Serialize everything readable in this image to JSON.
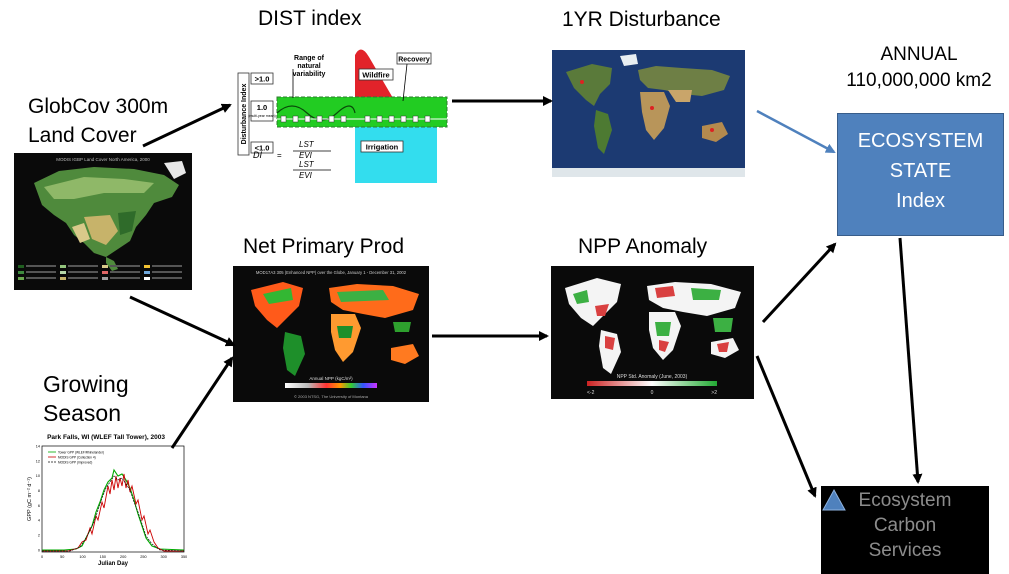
{
  "labels": {
    "globcov_l1": "GlobCov 300m",
    "globcov_l2": "Land Cover",
    "dist_index": "DIST index",
    "yr_disturbance": "1YR Disturbance",
    "annual_l1": "ANNUAL",
    "annual_l2": "110,000,000 km2",
    "net_primary": "Net Primary Prod",
    "npp_anomaly": "NPP Anomaly",
    "growing_l1": "Growing",
    "growing_l2": "Season"
  },
  "ecosystem_state": {
    "l1": "ECOSYSTEM",
    "l2": "STATE",
    "l3": "Index"
  },
  "carbon_services": {
    "l1": "Ecosystem",
    "l2": "Carbon",
    "l3": "Services"
  },
  "landcover_map": {
    "title": "MODIS IGBP Land Cover North America, 2000"
  },
  "dist_chart": {
    "y_axis": "Disturbance Index",
    "level_high": ">1.0",
    "level_mid": "1.0",
    "level_mid_sub": "(multi-year mean)",
    "level_low": "<1.0",
    "range_l1": "Range of",
    "range_l2": "natural",
    "range_l3": "variability",
    "wildfire": "Wildfire",
    "recovery": "Recovery",
    "irrigation": "Irrigation",
    "formula_lhs": "DI",
    "formula_num": "LST",
    "formula_den": "EVI"
  },
  "npp_map": {
    "title": "MOD17A3 305 (Enhanced NPP) over the Globe, January 1 - December 31, 2002",
    "legend": "Annual NPP (kgC/m²)",
    "credit": "© 2003 NTSG, The University of Montana"
  },
  "anomaly_map": {
    "legend": "NPP Std. Anomaly (June, 2003)",
    "tick_low": "<-2",
    "tick_mid": "0",
    "tick_high": ">2"
  },
  "gpp_chart": {
    "title": "Park Falls, WI (WLEF Tall Tower), 2003",
    "ylabel": "GPP (gC m⁻² d⁻¹)",
    "xlabel": "Julian Day",
    "x_ticks": [
      "0",
      "50",
      "100",
      "150",
      "200",
      "250",
      "300",
      "350"
    ],
    "y_ticks": [
      "0",
      "2",
      "4",
      "6",
      "8",
      "10",
      "12",
      "14"
    ],
    "legend": [
      "Tower GPP (WLEF/Rhinelander)",
      "MODIS GPP (Collection 4)",
      "MODIS GPP (Improved)"
    ]
  }
}
